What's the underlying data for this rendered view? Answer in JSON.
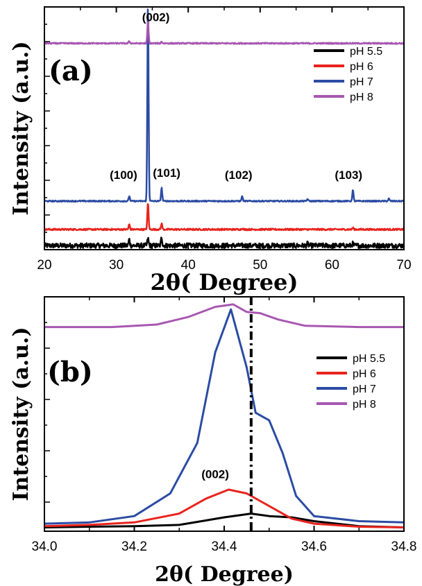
{
  "chart_data": [
    {
      "panel": "(a)",
      "type": "line",
      "xlabel": "2θ( Degree)",
      "ylabel": "Intensity (a.u.)",
      "xlim": [
        20,
        70
      ],
      "x_ticks": [
        20,
        30,
        40,
        50,
        60,
        70
      ],
      "legend_placement": "top-right",
      "baseline_offsets": {
        "pH 5.5": 0.0,
        "pH 6": 0.08,
        "pH 7": 0.22,
        "pH 8": 1.0
      },
      "series": [
        {
          "name": "pH 5.5",
          "color": "#000000",
          "noise": 0.012,
          "peaks": [
            [
              31.8,
              0.03
            ],
            [
              34.4,
              0.035
            ],
            [
              36.3,
              0.04
            ],
            [
              56.6,
              0.01
            ],
            [
              62.9,
              0.01
            ]
          ]
        },
        {
          "name": "pH 6",
          "color": "#e8231d",
          "noise": 0.004,
          "peaks": [
            [
              31.8,
              0.025
            ],
            [
              34.4,
              0.13
            ],
            [
              36.3,
              0.03
            ],
            [
              47.5,
              0.006
            ],
            [
              62.9,
              0.008
            ]
          ]
        },
        {
          "name": "pH 7",
          "color": "#2b4ba3",
          "noise": 0.003,
          "peaks": [
            [
              31.8,
              0.025
            ],
            [
              34.4,
              0.99
            ],
            [
              36.3,
              0.065
            ],
            [
              47.5,
              0.025
            ],
            [
              56.6,
              0.01
            ],
            [
              62.9,
              0.055
            ],
            [
              67.9,
              0.012
            ]
          ]
        },
        {
          "name": "pH 8",
          "color": "#a757b1",
          "noise": 0.003,
          "peaks": [
            [
              31.8,
              0.01
            ],
            [
              34.4,
              0.11
            ],
            [
              36.3,
              0.008
            ]
          ]
        }
      ],
      "annotations": [
        {
          "text": "(002)",
          "x": 35.5,
          "y": 1.11
        },
        {
          "text": "(100)",
          "x": 31.0,
          "y": 0.33
        },
        {
          "text": "(101)",
          "x": 37.0,
          "y": 0.34
        },
        {
          "text": "(102)",
          "x": 47.0,
          "y": 0.33
        },
        {
          "text": "(103)",
          "x": 62.3,
          "y": 0.33
        }
      ]
    },
    {
      "panel": "(b)",
      "type": "line",
      "xlabel": "2θ( Degree)",
      "ylabel": "Intensity (a.u.)",
      "xlim": [
        34.0,
        34.8
      ],
      "x_ticks": [
        "34.0",
        "34.2",
        "34.4",
        "34.6",
        "34.8"
      ],
      "legend_placement": "middle-right",
      "reference_line_x": 34.46,
      "series": [
        {
          "name": "pH 5.5",
          "color": "#000000",
          "points": [
            [
              34.0,
              0.005
            ],
            [
              34.1,
              0.008
            ],
            [
              34.2,
              0.01
            ],
            [
              34.3,
              0.015
            ],
            [
              34.35,
              0.03
            ],
            [
              34.4,
              0.045
            ],
            [
              34.46,
              0.06
            ],
            [
              34.5,
              0.05
            ],
            [
              34.55,
              0.045
            ],
            [
              34.6,
              0.03
            ],
            [
              34.7,
              0.01
            ],
            [
              34.8,
              0.005
            ]
          ]
        },
        {
          "name": "pH 6",
          "color": "#e8231d",
          "points": [
            [
              34.0,
              0.01
            ],
            [
              34.1,
              0.015
            ],
            [
              34.2,
              0.025
            ],
            [
              34.3,
              0.06
            ],
            [
              34.36,
              0.12
            ],
            [
              34.41,
              0.155
            ],
            [
              34.45,
              0.14
            ],
            [
              34.5,
              0.09
            ],
            [
              34.55,
              0.04
            ],
            [
              34.6,
              0.02
            ],
            [
              34.7,
              0.008
            ],
            [
              34.8,
              0.005
            ]
          ]
        },
        {
          "name": "pH 7",
          "color": "#2b4ba3",
          "points": [
            [
              34.0,
              0.02
            ],
            [
              34.1,
              0.025
            ],
            [
              34.2,
              0.05
            ],
            [
              34.28,
              0.14
            ],
            [
              34.34,
              0.34
            ],
            [
              34.38,
              0.7
            ],
            [
              34.415,
              0.87
            ],
            [
              34.45,
              0.64
            ],
            [
              34.47,
              0.46
            ],
            [
              34.5,
              0.43
            ],
            [
              34.53,
              0.3
            ],
            [
              34.56,
              0.13
            ],
            [
              34.6,
              0.05
            ],
            [
              34.7,
              0.03
            ],
            [
              34.8,
              0.025
            ]
          ]
        },
        {
          "name": "pH 8",
          "color": "#a757b1",
          "points": [
            [
              34.0,
              0.8
            ],
            [
              34.15,
              0.8
            ],
            [
              34.25,
              0.81
            ],
            [
              34.32,
              0.84
            ],
            [
              34.38,
              0.88
            ],
            [
              34.42,
              0.89
            ],
            [
              34.45,
              0.86
            ],
            [
              34.48,
              0.855
            ],
            [
              34.52,
              0.83
            ],
            [
              34.58,
              0.805
            ],
            [
              34.7,
              0.8
            ],
            [
              34.8,
              0.8
            ]
          ]
        }
      ],
      "annotations": [
        {
          "text": "(002)",
          "x": 34.38,
          "y": 0.2
        }
      ]
    }
  ]
}
